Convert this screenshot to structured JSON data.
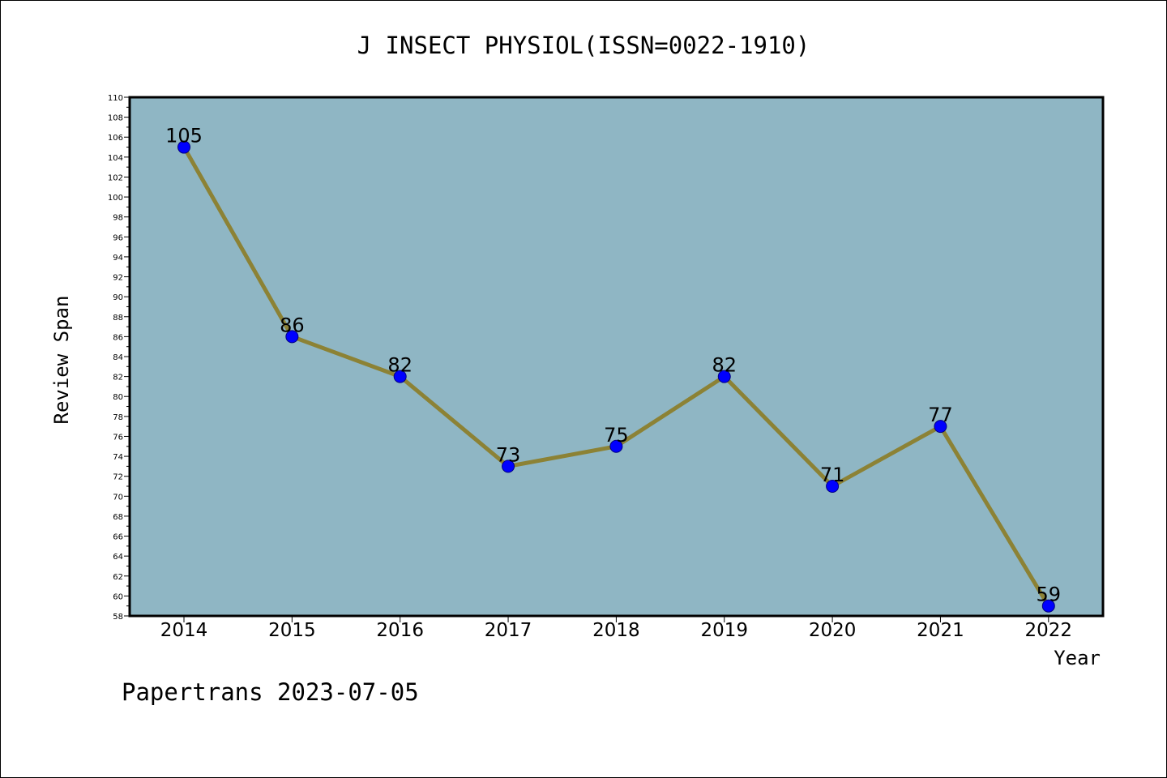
{
  "chart_data": {
    "type": "line",
    "title": "J INSECT PHYSIOL(ISSN=0022-1910)",
    "xlabel": "Year",
    "ylabel": "Review Span",
    "footer": "Papertrans 2023-07-05",
    "categories": [
      "2014",
      "2015",
      "2016",
      "2017",
      "2018",
      "2019",
      "2020",
      "2021",
      "2022"
    ],
    "series": [
      {
        "values": [
          105,
          86,
          82,
          73,
          75,
          82,
          71,
          77,
          59
        ]
      }
    ],
    "data_labels": [
      "105",
      "86",
      "82",
      "73",
      "75",
      "82",
      "71",
      "77",
      "59"
    ],
    "ylim": [
      58,
      110
    ],
    "yticks": [
      "58",
      "60",
      "62",
      "64",
      "66",
      "68",
      "70",
      "72",
      "74",
      "76",
      "78",
      "80",
      "82",
      "84",
      "86",
      "88",
      "90",
      "92",
      "94",
      "96",
      "98",
      "100",
      "102",
      "104",
      "106",
      "108",
      "110"
    ],
    "grid": false,
    "legend": "none",
    "colors": {
      "plot_background": "#8fb6c4",
      "line": "#8c8235",
      "marker": "#0000ff",
      "marker_edge": "#000080",
      "axis": "#000000"
    }
  }
}
